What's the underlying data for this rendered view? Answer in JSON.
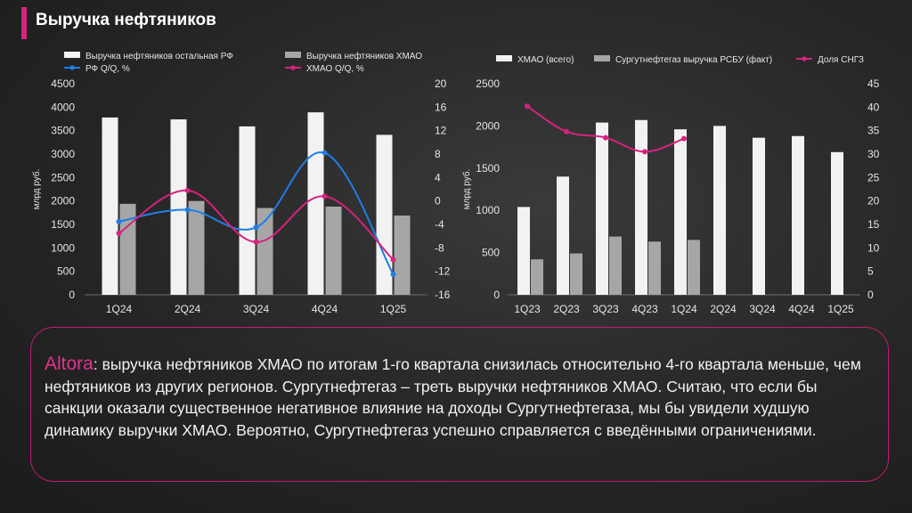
{
  "page": {
    "title": "Выручка нефтяников"
  },
  "colors": {
    "accent": "#d6237f",
    "bar_white": "#f2f2f2",
    "bar_gray": "#a6a6a6",
    "line_blue": "#1e7ee6",
    "line_magenta": "#d6237f"
  },
  "chart_data": [
    {
      "type": "bar",
      "categories": [
        "1Q24",
        "2Q24",
        "3Q24",
        "4Q24",
        "1Q25"
      ],
      "series": [
        {
          "name": "Выручка нефтяников остальная РФ",
          "kind": "bar",
          "axis": "left",
          "values": [
            3780,
            3740,
            3590,
            3890,
            3410
          ]
        },
        {
          "name": "Выручка нефтяников ХМАО",
          "kind": "bar",
          "axis": "left",
          "values": [
            1940,
            2000,
            1850,
            1880,
            1690
          ]
        },
        {
          "name": "РФ Q/Q, %",
          "kind": "line",
          "axis": "right",
          "values": [
            -3.5,
            -1.5,
            -4.5,
            8.2,
            -12.5
          ]
        },
        {
          "name": "ХМАО Q/Q, %",
          "kind": "line",
          "axis": "right",
          "values": [
            -5.5,
            1.8,
            -7.0,
            0.8,
            -10.0
          ]
        }
      ],
      "ylabel": "млрд руб.",
      "ylim": [
        0,
        4500
      ],
      "yticks": [
        "4500",
        "4000",
        "3500",
        "3000",
        "2500",
        "2000",
        "1500",
        "1000",
        "500",
        "0"
      ],
      "y2lim": [
        -16,
        20
      ],
      "y2ticks": [
        "20",
        "16",
        "12",
        "8",
        "4",
        "0",
        "-4",
        "-8",
        "-12",
        "-16"
      ],
      "legend": [
        "Выручка нефтяников остальная РФ",
        "Выручка нефтяников ХМАО",
        "РФ Q/Q, %",
        "ХМАО Q/Q, %"
      ]
    },
    {
      "type": "bar",
      "categories": [
        "1Q23",
        "2Q23",
        "3Q23",
        "4Q23",
        "1Q24",
        "2Q24",
        "3Q24",
        "4Q24",
        "1Q25"
      ],
      "series": [
        {
          "name": "ХМАО (всего)",
          "kind": "bar",
          "axis": "left",
          "values": [
            1040,
            1400,
            2040,
            2070,
            1960,
            2000,
            1860,
            1880,
            1690
          ]
        },
        {
          "name": "Сургутнефтегаз  выручка РСБУ  (факт)",
          "kind": "bar",
          "axis": "left",
          "values": [
            420,
            490,
            690,
            630,
            650,
            null,
            null,
            null,
            null
          ]
        },
        {
          "name": "Доля СНГЗ",
          "kind": "line",
          "axis": "right",
          "values": [
            40.2,
            34.8,
            33.5,
            30.5,
            33.3,
            null,
            null,
            null,
            null
          ]
        }
      ],
      "ylabel": "млрд руб.",
      "ylim": [
        0,
        2500
      ],
      "yticks": [
        "2500",
        "2000",
        "1500",
        "1000",
        "500",
        "0"
      ],
      "y2lim": [
        0,
        45
      ],
      "y2ticks": [
        "45",
        "40",
        "35",
        "30",
        "25",
        "20",
        "15",
        "10",
        "5",
        "0"
      ],
      "legend": [
        "ХМАО (всего)",
        "Сургутнефтегаз  выручка РСБУ  (факт)",
        "Доля СНГЗ"
      ]
    }
  ],
  "comment": {
    "brand": "Altora",
    "text": ": выручка нефтяников ХМАО по итогам 1-го квартала снизилась относительно 4-го квартала меньше, чем нефтяников из других регионов. Сургутнефтегаз  – треть выручки нефтяников ХМАО. Считаю, что если бы санкции оказали существенное негативное влияние на доходы Сургутнефтегаза, мы бы увидели худшую динамику выручки ХМАО. Вероятно, Сургутнефтегаз  успешно справляется с введёнными ограничениями."
  }
}
